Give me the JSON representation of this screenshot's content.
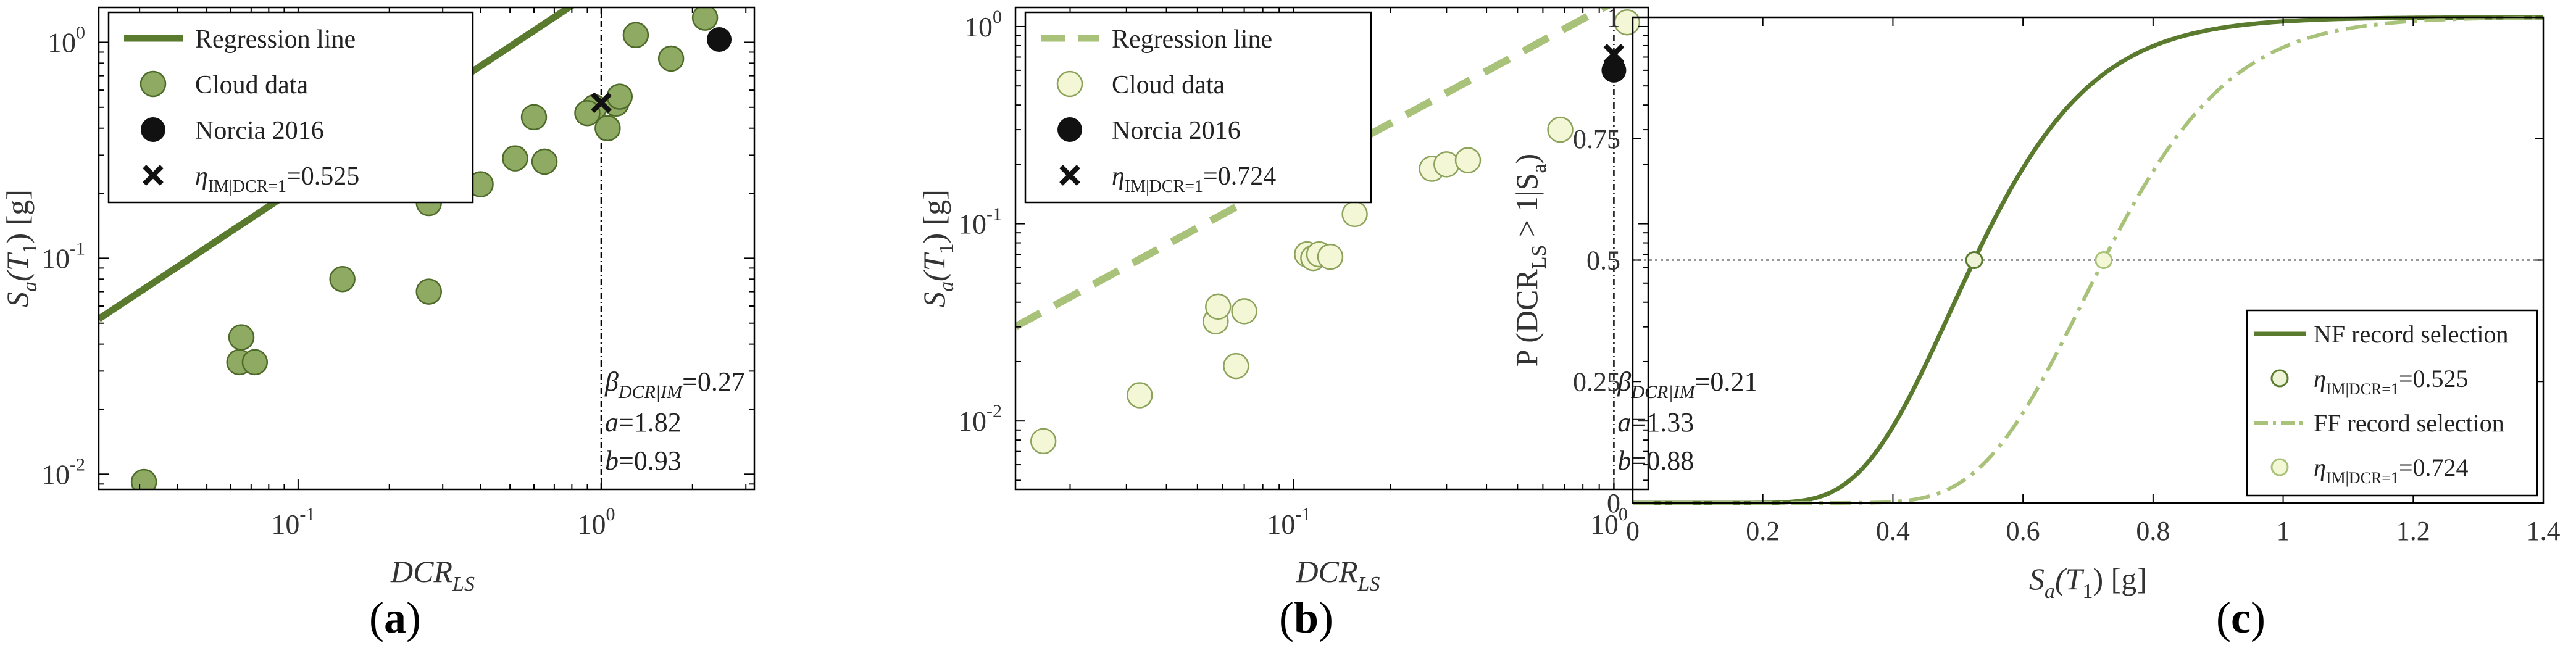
{
  "colors": {
    "nf_green": "#5a7a2e",
    "nf_marker": "#8faa63",
    "ff_green": "#a9c27a",
    "ff_marker": "#f3f7d6",
    "black": "#111111",
    "grid": "#808080"
  },
  "panels": [
    {
      "id": "a",
      "open": "(",
      "letter": "a",
      "close": ")"
    },
    {
      "id": "b",
      "open": "(",
      "letter": "b",
      "close": ")"
    },
    {
      "id": "c",
      "open": "(",
      "letter": "c",
      "close": ")"
    }
  ],
  "chart_data": [
    {
      "panel": "a",
      "type": "scatter",
      "xscale": "log",
      "yscale": "log",
      "xlim": [
        0.022,
        3.2
      ],
      "ylim": [
        0.0085,
        1.45
      ],
      "xticks": [
        0.1,
        1
      ],
      "xtick_labels": [
        "10",
        "10"
      ],
      "xtick_exps": [
        "-1",
        "0"
      ],
      "yticks": [
        0.01,
        0.1,
        1
      ],
      "ytick_labels": [
        "10",
        "10",
        "10"
      ],
      "ytick_exps": [
        "-2",
        "-1",
        "0"
      ],
      "xlabel": {
        "main": "DCR",
        "sub": "LS"
      },
      "ylabel": {
        "main": "S",
        "sub": "a",
        "rest": "(T",
        "sub2": "1",
        "end": ") [g]"
      },
      "regression": {
        "a": 1.82,
        "b": 0.93
      },
      "cloud": [
        [
          0.031,
          0.0092
        ],
        [
          0.065,
          0.043
        ],
        [
          0.064,
          0.033
        ],
        [
          0.072,
          0.033
        ],
        [
          0.14,
          0.08
        ],
        [
          0.27,
          0.07
        ],
        [
          0.27,
          0.18
        ],
        [
          0.4,
          0.22
        ],
        [
          0.52,
          0.29
        ],
        [
          0.6,
          0.45
        ],
        [
          0.65,
          0.28
        ],
        [
          0.95,
          0.5
        ],
        [
          1.05,
          0.4
        ],
        [
          1.12,
          0.52
        ],
        [
          1.15,
          0.56
        ],
        [
          1.3,
          1.08
        ],
        [
          1.7,
          0.84
        ],
        [
          2.2,
          1.3
        ],
        [
          0.9,
          0.47
        ]
      ],
      "norcia": [
        2.45,
        1.03
      ],
      "eta": [
        1.0,
        0.525
      ],
      "vline": 1.0,
      "legend": [
        {
          "type": "line",
          "label": "Regression line"
        },
        {
          "type": "cloud",
          "label": "Cloud data"
        },
        {
          "type": "norcia",
          "label": "Norcia 2016"
        },
        {
          "type": "eta",
          "label": "η",
          "sub": "IM|DCR=1",
          "value": "=0.525"
        }
      ],
      "annotation": {
        "beta": "β",
        "beta_sub": "DCR|IM",
        "beta_val": "=0.27",
        "a_text": "a",
        "a_val": "=1.82",
        "b_text": "b",
        "b_val": "=0.93"
      }
    },
    {
      "panel": "b",
      "type": "scatter",
      "xscale": "log",
      "yscale": "log",
      "xlim": [
        0.0135,
        1.28
      ],
      "ylim": [
        0.0045,
        1.25
      ],
      "xticks": [
        0.1,
        1
      ],
      "xtick_labels": [
        "10",
        "10"
      ],
      "xtick_exps": [
        "-1",
        "0"
      ],
      "yticks": [
        0.01,
        0.1,
        1
      ],
      "ytick_labels": [
        "10",
        "10",
        "10"
      ],
      "ytick_exps": [
        "-2",
        "-1",
        "0"
      ],
      "xlabel": {
        "main": "DCR",
        "sub": "LS"
      },
      "ylabel": {
        "main": "S",
        "sub": "a",
        "rest": "(T",
        "sub2": "1",
        "end": ") [g]"
      },
      "regression": {
        "a": 1.33,
        "b": 0.88
      },
      "cloud": [
        [
          0.0165,
          0.0079
        ],
        [
          0.033,
          0.0135
        ],
        [
          0.057,
          0.032
        ],
        [
          0.058,
          0.038
        ],
        [
          0.066,
          0.019
        ],
        [
          0.07,
          0.036
        ],
        [
          0.11,
          0.07
        ],
        [
          0.115,
          0.067
        ],
        [
          0.12,
          0.07
        ],
        [
          0.13,
          0.068
        ],
        [
          0.155,
          0.112
        ],
        [
          0.27,
          0.19
        ],
        [
          0.3,
          0.2
        ],
        [
          0.35,
          0.21
        ],
        [
          0.68,
          0.3
        ],
        [
          1.1,
          1.05
        ]
      ],
      "norcia": [
        1.0,
        0.6
      ],
      "eta": [
        1.0,
        0.724
      ],
      "vline": 1.0,
      "legend": [
        {
          "type": "line",
          "label": "Regression line"
        },
        {
          "type": "cloud",
          "label": "Cloud data"
        },
        {
          "type": "norcia",
          "label": "Norcia 2016"
        },
        {
          "type": "eta",
          "label": "η",
          "sub": "IM|DCR=1",
          "value": "=0.724"
        }
      ],
      "annotation": {
        "beta": "β",
        "beta_sub": "DCR|IM",
        "beta_val": "=0.21",
        "a_text": "a",
        "a_val": "=1.33",
        "b_text": "b",
        "b_val": "=0.88"
      }
    },
    {
      "panel": "c",
      "type": "line",
      "xlim": [
        0,
        1.4
      ],
      "ylim": [
        0,
        1
      ],
      "xticks": [
        0,
        0.2,
        0.4,
        0.6,
        0.8,
        1,
        1.2,
        1.4
      ],
      "xtick_labels": [
        "0",
        "0.2",
        "0.4",
        "0.6",
        "0.8",
        "1",
        "1.2",
        "1.4"
      ],
      "yticks": [
        0,
        0.25,
        0.5,
        0.75,
        1
      ],
      "ytick_labels": [
        "0",
        "0.25",
        "0.5",
        "0.75",
        "1"
      ],
      "xlabel": {
        "main": "S",
        "sub": "a",
        "rest": "(T",
        "sub2": "1",
        "end": ") [g]"
      },
      "ylabel": {
        "pre": "P (DCR",
        "sub": "LS",
        "mid": " > 1|S",
        "sub2": "a",
        "end": ")"
      },
      "hline": 0.5,
      "series": [
        {
          "name": "NF record selection",
          "median": 0.525,
          "beta": 0.27,
          "style": "solid"
        },
        {
          "name": "FF record selection",
          "median": 0.724,
          "beta": 0.21,
          "style": "dashdot"
        }
      ],
      "legend": [
        {
          "type": "solid",
          "label": "NF record selection"
        },
        {
          "type": "circle_nf",
          "label": "η",
          "sub": "IM|DCR=1",
          "value": "=0.525"
        },
        {
          "type": "dashdot",
          "label": "FF record selection"
        },
        {
          "type": "circle_ff",
          "label": "η",
          "sub": "IM|DCR=1",
          "value": "=0.724"
        }
      ]
    }
  ]
}
